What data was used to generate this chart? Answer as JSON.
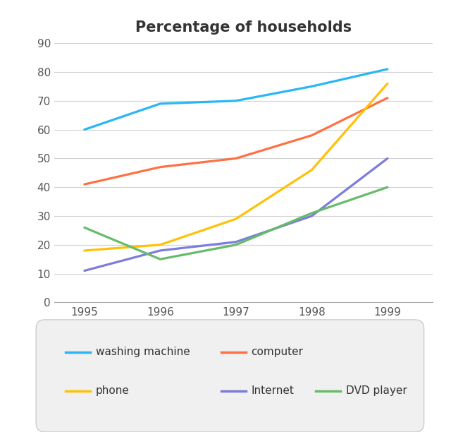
{
  "title": "Percentage of households",
  "years": [
    1995,
    1996,
    1997,
    1998,
    1999
  ],
  "series": {
    "washing machine": {
      "values": [
        60,
        69,
        70,
        75,
        81
      ],
      "color": "#29b6f6"
    },
    "computer": {
      "values": [
        41,
        47,
        50,
        58,
        71
      ],
      "color": "#ff7043"
    },
    "phone": {
      "values": [
        18,
        20,
        29,
        46,
        76
      ],
      "color": "#ffc107"
    },
    "Internet": {
      "values": [
        11,
        18,
        21,
        30,
        50
      ],
      "color": "#7c7cdc"
    },
    "DVD player": {
      "values": [
        26,
        15,
        20,
        31,
        40
      ],
      "color": "#66bb6a"
    }
  },
  "ylim": [
    0,
    90
  ],
  "yticks": [
    0,
    10,
    20,
    30,
    40,
    50,
    60,
    70,
    80,
    90
  ],
  "title_fontsize": 15,
  "tick_fontsize": 11,
  "legend_fontsize": 11,
  "line_width": 2.3,
  "background_color": "#ffffff",
  "grid_color": "#d0d0d0",
  "legend_order": [
    "washing machine",
    "computer",
    "phone",
    "Internet",
    "DVD player"
  ]
}
